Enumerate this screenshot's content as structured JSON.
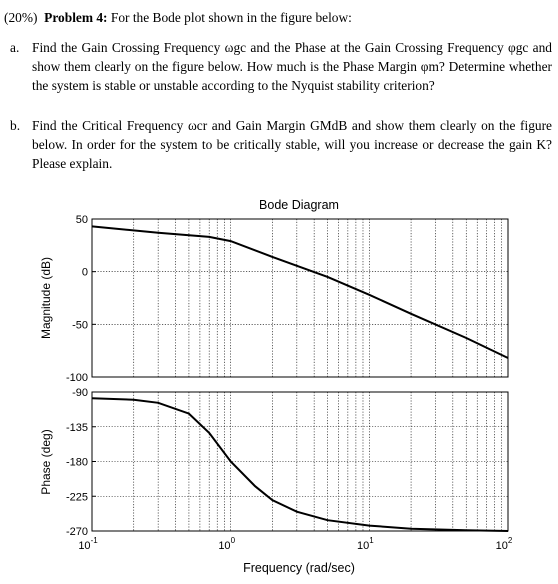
{
  "problem": {
    "weight": "(20%)",
    "title": "Problem 4:",
    "intro": "For the Bode plot shown in the figure below:"
  },
  "items": [
    {
      "marker": "a.",
      "text": "Find the Gain Crossing Frequency ωgc and the Phase at the Gain Crossing Frequency φgc and show them clearly on the figure below. How much is the Phase Margin φm? Determine whether the system is stable or unstable according to the Nyquist stability criterion?"
    },
    {
      "marker": "b.",
      "text": "Find the Critical Frequency ωcr and Gain Margin GMdB and show them clearly on the figure below. In order for the system to be critically stable, will you increase or decrease the gain K? Please explain."
    }
  ],
  "chart_data": [
    {
      "type": "line",
      "title": "Bode Diagram",
      "ylabel": "Magnitude (dB)",
      "xscale": "log",
      "xlim": [
        0.1,
        100
      ],
      "ylim": [
        -100,
        50
      ],
      "yticks": [
        50,
        0,
        -50,
        -100
      ],
      "grid": true,
      "x": [
        0.1,
        0.3,
        0.7,
        1.0,
        2.0,
        5.0,
        10,
        20,
        50,
        100
      ],
      "y": [
        43,
        37,
        33,
        29,
        14,
        -5,
        -22,
        -40,
        -63,
        -82
      ]
    },
    {
      "type": "line",
      "ylabel": "Phase (deg)",
      "xlabel": "Frequency (rad/sec)",
      "xscale": "log",
      "xlim": [
        0.1,
        100
      ],
      "ylim": [
        -270,
        -90
      ],
      "yticks": [
        -90,
        -135,
        -180,
        -225,
        -270
      ],
      "xtick_labels": [
        "10^-1",
        "10^0",
        "10^1",
        "10^2"
      ],
      "grid": true,
      "x": [
        0.1,
        0.2,
        0.3,
        0.5,
        0.7,
        1.0,
        1.5,
        2.0,
        3.0,
        5.0,
        10,
        20,
        50,
        100
      ],
      "y": [
        -98,
        -100,
        -104,
        -118,
        -143,
        -180,
        -212,
        -230,
        -245,
        -256,
        -263,
        -267,
        -269,
        -270
      ]
    }
  ]
}
